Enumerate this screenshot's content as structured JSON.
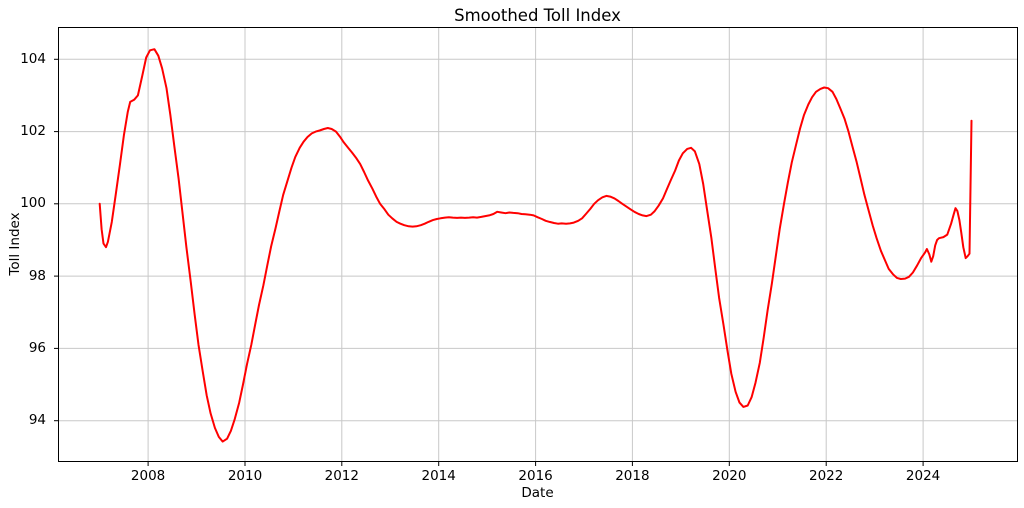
{
  "chart_data": {
    "type": "line",
    "title": "Smoothed Toll Index",
    "xlabel": "Date",
    "ylabel": "Toll Index",
    "x_ticks": [
      2008,
      2010,
      2012,
      2014,
      2016,
      2018,
      2020,
      2022,
      2024
    ],
    "y_ticks": [
      94,
      96,
      98,
      100,
      102,
      104
    ],
    "xlim": [
      2006.15,
      2025.95
    ],
    "ylim": [
      92.87,
      104.88
    ],
    "grid": true,
    "background_color": "#ffffff",
    "grid_color": "#c8c8c8",
    "axis_color": "#000000",
    "series": [
      {
        "name": "Smoothed Toll Index",
        "color": "#ff0000",
        "points": [
          [
            2007.0,
            100.0
          ],
          [
            2007.04,
            99.3
          ],
          [
            2007.08,
            98.9
          ],
          [
            2007.13,
            98.8
          ],
          [
            2007.17,
            98.95
          ],
          [
            2007.25,
            99.5
          ],
          [
            2007.33,
            100.25
          ],
          [
            2007.42,
            101.1
          ],
          [
            2007.5,
            101.9
          ],
          [
            2007.58,
            102.55
          ],
          [
            2007.63,
            102.82
          ],
          [
            2007.71,
            102.88
          ],
          [
            2007.79,
            103.0
          ],
          [
            2007.88,
            103.55
          ],
          [
            2007.96,
            104.05
          ],
          [
            2008.04,
            104.25
          ],
          [
            2008.13,
            104.28
          ],
          [
            2008.21,
            104.1
          ],
          [
            2008.29,
            103.75
          ],
          [
            2008.38,
            103.2
          ],
          [
            2008.46,
            102.45
          ],
          [
            2008.54,
            101.6
          ],
          [
            2008.63,
            100.7
          ],
          [
            2008.71,
            99.75
          ],
          [
            2008.79,
            98.8
          ],
          [
            2008.88,
            97.85
          ],
          [
            2008.96,
            96.95
          ],
          [
            2009.04,
            96.1
          ],
          [
            2009.13,
            95.35
          ],
          [
            2009.21,
            94.7
          ],
          [
            2009.29,
            94.2
          ],
          [
            2009.38,
            93.8
          ],
          [
            2009.46,
            93.55
          ],
          [
            2009.54,
            93.42
          ],
          [
            2009.63,
            93.5
          ],
          [
            2009.71,
            93.72
          ],
          [
            2009.79,
            94.05
          ],
          [
            2009.88,
            94.5
          ],
          [
            2009.96,
            95.0
          ],
          [
            2010.04,
            95.55
          ],
          [
            2010.13,
            96.1
          ],
          [
            2010.21,
            96.65
          ],
          [
            2010.29,
            97.2
          ],
          [
            2010.38,
            97.75
          ],
          [
            2010.46,
            98.3
          ],
          [
            2010.54,
            98.82
          ],
          [
            2010.63,
            99.32
          ],
          [
            2010.71,
            99.8
          ],
          [
            2010.79,
            100.25
          ],
          [
            2010.88,
            100.65
          ],
          [
            2010.96,
            101.0
          ],
          [
            2011.04,
            101.3
          ],
          [
            2011.13,
            101.55
          ],
          [
            2011.21,
            101.72
          ],
          [
            2011.29,
            101.85
          ],
          [
            2011.38,
            101.95
          ],
          [
            2011.46,
            102.0
          ],
          [
            2011.54,
            102.03
          ],
          [
            2011.63,
            102.07
          ],
          [
            2011.71,
            102.1
          ],
          [
            2011.79,
            102.07
          ],
          [
            2011.88,
            102.0
          ],
          [
            2011.96,
            101.86
          ],
          [
            2012.04,
            101.7
          ],
          [
            2012.13,
            101.55
          ],
          [
            2012.21,
            101.42
          ],
          [
            2012.29,
            101.28
          ],
          [
            2012.38,
            101.1
          ],
          [
            2012.46,
            100.88
          ],
          [
            2012.54,
            100.65
          ],
          [
            2012.63,
            100.42
          ],
          [
            2012.71,
            100.2
          ],
          [
            2012.79,
            100.0
          ],
          [
            2012.88,
            99.85
          ],
          [
            2012.96,
            99.7
          ],
          [
            2013.04,
            99.6
          ],
          [
            2013.13,
            99.5
          ],
          [
            2013.21,
            99.45
          ],
          [
            2013.29,
            99.41
          ],
          [
            2013.38,
            99.38
          ],
          [
            2013.46,
            99.37
          ],
          [
            2013.54,
            99.38
          ],
          [
            2013.63,
            99.41
          ],
          [
            2013.71,
            99.45
          ],
          [
            2013.79,
            99.5
          ],
          [
            2013.88,
            99.55
          ],
          [
            2013.96,
            99.58
          ],
          [
            2014.04,
            99.6
          ],
          [
            2014.13,
            99.62
          ],
          [
            2014.21,
            99.63
          ],
          [
            2014.29,
            99.62
          ],
          [
            2014.38,
            99.61
          ],
          [
            2014.46,
            99.62
          ],
          [
            2014.54,
            99.61
          ],
          [
            2014.63,
            99.62
          ],
          [
            2014.71,
            99.63
          ],
          [
            2014.79,
            99.62
          ],
          [
            2014.88,
            99.64
          ],
          [
            2014.96,
            99.66
          ],
          [
            2015.04,
            99.68
          ],
          [
            2015.13,
            99.72
          ],
          [
            2015.21,
            99.78
          ],
          [
            2015.29,
            99.76
          ],
          [
            2015.38,
            99.74
          ],
          [
            2015.46,
            99.76
          ],
          [
            2015.54,
            99.75
          ],
          [
            2015.63,
            99.74
          ],
          [
            2015.71,
            99.72
          ],
          [
            2015.79,
            99.71
          ],
          [
            2015.88,
            99.7
          ],
          [
            2015.96,
            99.68
          ],
          [
            2016.04,
            99.63
          ],
          [
            2016.13,
            99.58
          ],
          [
            2016.21,
            99.53
          ],
          [
            2016.29,
            99.5
          ],
          [
            2016.38,
            99.47
          ],
          [
            2016.46,
            99.45
          ],
          [
            2016.54,
            99.46
          ],
          [
            2016.63,
            99.45
          ],
          [
            2016.71,
            99.46
          ],
          [
            2016.79,
            99.48
          ],
          [
            2016.88,
            99.53
          ],
          [
            2016.96,
            99.6
          ],
          [
            2017.04,
            99.72
          ],
          [
            2017.13,
            99.86
          ],
          [
            2017.21,
            100.0
          ],
          [
            2017.29,
            100.1
          ],
          [
            2017.38,
            100.18
          ],
          [
            2017.46,
            100.22
          ],
          [
            2017.54,
            100.2
          ],
          [
            2017.63,
            100.15
          ],
          [
            2017.71,
            100.08
          ],
          [
            2017.79,
            100.0
          ],
          [
            2017.88,
            99.92
          ],
          [
            2017.96,
            99.85
          ],
          [
            2018.04,
            99.78
          ],
          [
            2018.13,
            99.72
          ],
          [
            2018.21,
            99.68
          ],
          [
            2018.29,
            99.66
          ],
          [
            2018.38,
            99.7
          ],
          [
            2018.46,
            99.8
          ],
          [
            2018.54,
            99.95
          ],
          [
            2018.63,
            100.15
          ],
          [
            2018.71,
            100.4
          ],
          [
            2018.79,
            100.65
          ],
          [
            2018.88,
            100.92
          ],
          [
            2018.96,
            101.2
          ],
          [
            2019.04,
            101.4
          ],
          [
            2019.13,
            101.52
          ],
          [
            2019.21,
            101.55
          ],
          [
            2019.29,
            101.45
          ],
          [
            2019.38,
            101.1
          ],
          [
            2019.46,
            100.55
          ],
          [
            2019.54,
            99.85
          ],
          [
            2019.63,
            99.05
          ],
          [
            2019.71,
            98.2
          ],
          [
            2019.79,
            97.4
          ],
          [
            2019.88,
            96.65
          ],
          [
            2019.96,
            95.95
          ],
          [
            2020.04,
            95.3
          ],
          [
            2020.13,
            94.8
          ],
          [
            2020.21,
            94.5
          ],
          [
            2020.29,
            94.38
          ],
          [
            2020.38,
            94.42
          ],
          [
            2020.46,
            94.65
          ],
          [
            2020.54,
            95.05
          ],
          [
            2020.63,
            95.6
          ],
          [
            2020.71,
            96.3
          ],
          [
            2020.79,
            97.05
          ],
          [
            2020.88,
            97.8
          ],
          [
            2020.96,
            98.55
          ],
          [
            2021.04,
            99.3
          ],
          [
            2021.13,
            100.0
          ],
          [
            2021.21,
            100.6
          ],
          [
            2021.29,
            101.15
          ],
          [
            2021.38,
            101.65
          ],
          [
            2021.46,
            102.08
          ],
          [
            2021.54,
            102.45
          ],
          [
            2021.63,
            102.75
          ],
          [
            2021.71,
            102.95
          ],
          [
            2021.79,
            103.1
          ],
          [
            2021.88,
            103.18
          ],
          [
            2021.96,
            103.22
          ],
          [
            2022.04,
            103.2
          ],
          [
            2022.13,
            103.1
          ],
          [
            2022.21,
            102.9
          ],
          [
            2022.29,
            102.65
          ],
          [
            2022.38,
            102.35
          ],
          [
            2022.46,
            102.0
          ],
          [
            2022.54,
            101.6
          ],
          [
            2022.63,
            101.15
          ],
          [
            2022.71,
            100.7
          ],
          [
            2022.79,
            100.25
          ],
          [
            2022.88,
            99.8
          ],
          [
            2022.96,
            99.4
          ],
          [
            2023.04,
            99.05
          ],
          [
            2023.13,
            98.7
          ],
          [
            2023.21,
            98.45
          ],
          [
            2023.29,
            98.2
          ],
          [
            2023.38,
            98.05
          ],
          [
            2023.46,
            97.95
          ],
          [
            2023.54,
            97.92
          ],
          [
            2023.63,
            97.93
          ],
          [
            2023.71,
            97.98
          ],
          [
            2023.79,
            98.1
          ],
          [
            2023.88,
            98.3
          ],
          [
            2023.96,
            98.5
          ],
          [
            2024.04,
            98.65
          ],
          [
            2024.08,
            98.75
          ],
          [
            2024.13,
            98.6
          ],
          [
            2024.17,
            98.4
          ],
          [
            2024.21,
            98.55
          ],
          [
            2024.25,
            98.85
          ],
          [
            2024.29,
            99.0
          ],
          [
            2024.33,
            99.05
          ],
          [
            2024.42,
            99.08
          ],
          [
            2024.5,
            99.15
          ],
          [
            2024.58,
            99.45
          ],
          [
            2024.63,
            99.7
          ],
          [
            2024.67,
            99.88
          ],
          [
            2024.71,
            99.8
          ],
          [
            2024.75,
            99.55
          ],
          [
            2024.79,
            99.2
          ],
          [
            2024.83,
            98.8
          ],
          [
            2024.88,
            98.5
          ],
          [
            2024.92,
            98.55
          ],
          [
            2024.96,
            98.62
          ],
          [
            2025.0,
            102.3
          ]
        ]
      }
    ]
  }
}
